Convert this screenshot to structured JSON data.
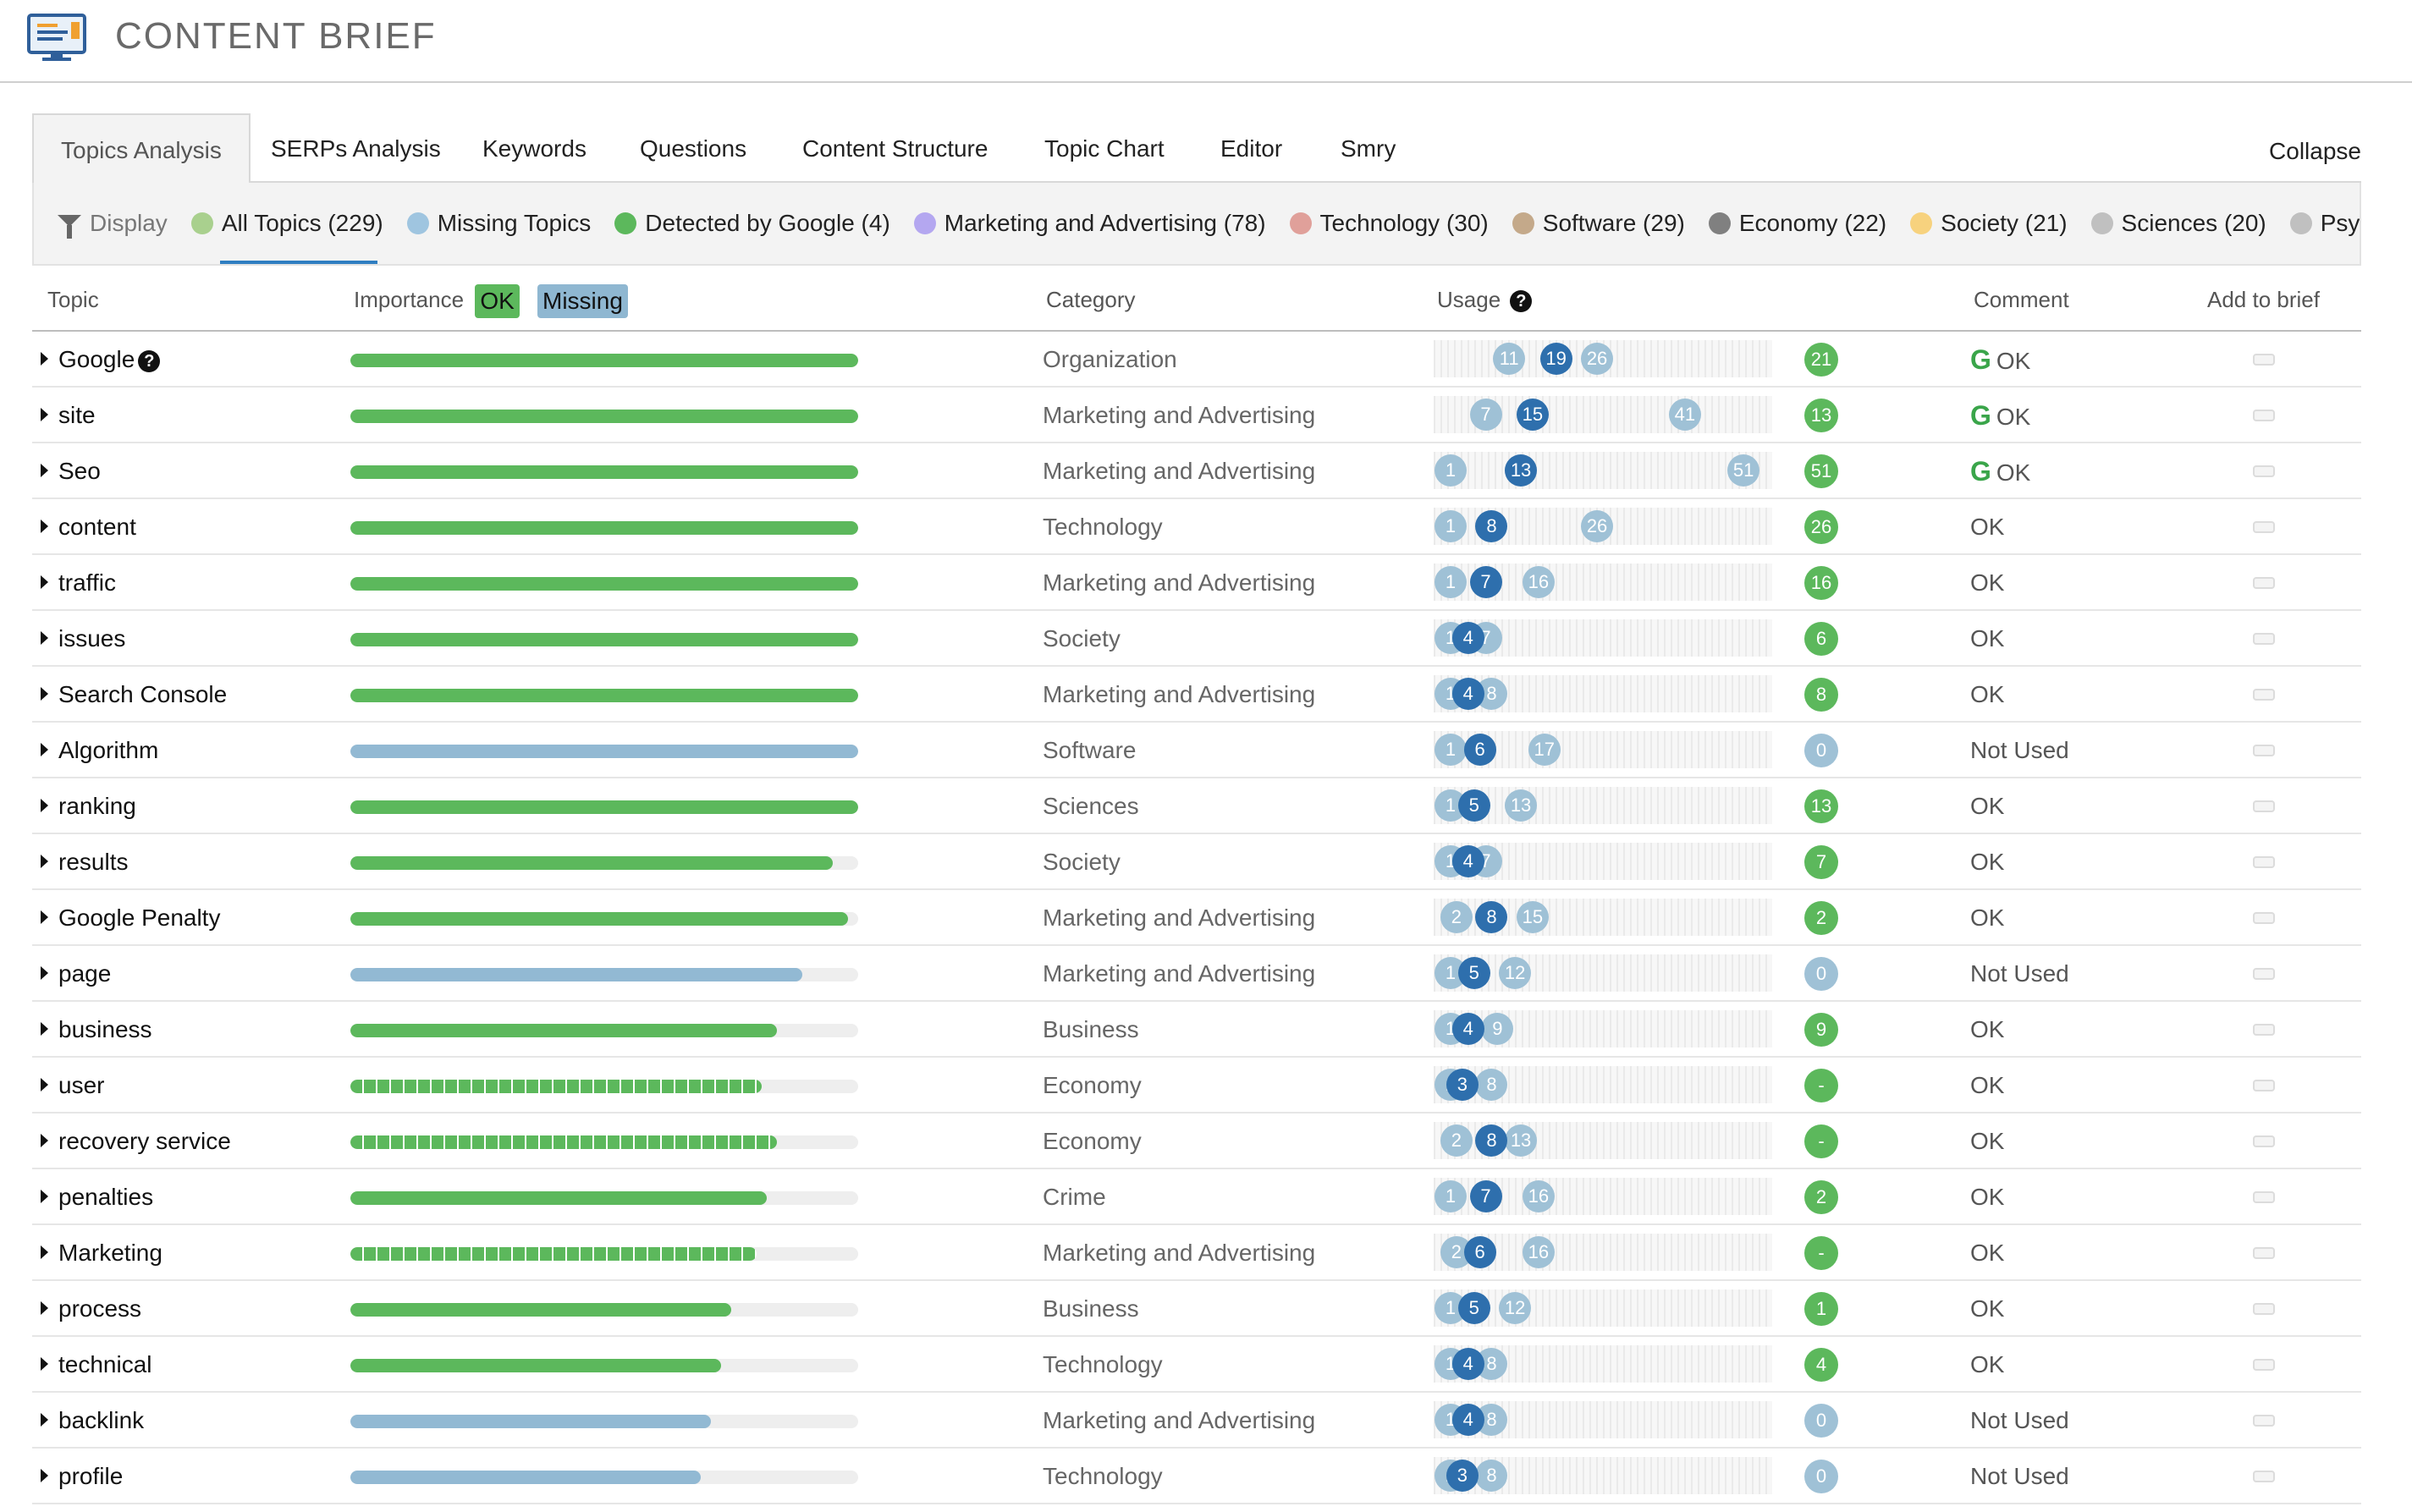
{
  "app": {
    "title": "CONTENT BRIEF",
    "logo_icon": "monitor-chart-icon"
  },
  "tabs": [
    {
      "label": "Topics Analysis",
      "active": true
    },
    {
      "label": "SERPs Analysis"
    },
    {
      "label": "Keywords"
    },
    {
      "label": "Questions"
    },
    {
      "label": "Content Structure"
    },
    {
      "label": "Topic Chart"
    },
    {
      "label": "Editor"
    },
    {
      "label": "Smry"
    }
  ],
  "collapse_label": "Collapse",
  "filters": {
    "display_label": "Display",
    "display_icon": "funnel-icon",
    "items": [
      {
        "label": "All Topics (229)",
        "color": "#a9d08e"
      },
      {
        "label": "Missing Topics",
        "color": "#9fc5e0"
      },
      {
        "label": "Detected by Google (4)",
        "color": "#5cb85c"
      },
      {
        "label": "Marketing and Advertising (78)",
        "color": "#b4a7f0"
      },
      {
        "label": "Technology (30)",
        "color": "#e0a09a"
      },
      {
        "label": "Software (29)",
        "color": "#c4a98a"
      },
      {
        "label": "Economy (22)",
        "color": "#808080"
      },
      {
        "label": "Society (21)",
        "color": "#f7d27e"
      },
      {
        "label": "Sciences (20)",
        "color": "#c0c0c0"
      },
      {
        "label": "Psy…",
        "color": "#c0c0c0"
      }
    ]
  },
  "table": {
    "headers": {
      "topic": "Topic",
      "importance": "Importance",
      "ok_badge": "OK",
      "missing_badge": "Missing",
      "category": "Category",
      "usage": "Usage",
      "comment": "Comment",
      "add": "Add to brief"
    },
    "rows": [
      {
        "topic": "Google",
        "help": true,
        "importance": 1.0,
        "style": "ok",
        "category": "Organization",
        "usage": [
          11,
          19,
          26
        ],
        "count": "21",
        "countType": "g",
        "google": true,
        "comment": "OK"
      },
      {
        "topic": "site",
        "importance": 1.0,
        "style": "ok",
        "category": "Marketing and Advertising",
        "usage": [
          7,
          15,
          41
        ],
        "count": "13",
        "countType": "g",
        "google": true,
        "comment": "OK"
      },
      {
        "topic": "Seo",
        "importance": 1.0,
        "style": "ok",
        "category": "Marketing and Advertising",
        "usage": [
          1,
          13,
          51
        ],
        "count": "51",
        "countType": "g",
        "google": true,
        "comment": "OK"
      },
      {
        "topic": "content",
        "importance": 1.0,
        "style": "ok",
        "category": "Technology",
        "usage": [
          1,
          8,
          26
        ],
        "count": "26",
        "countType": "g",
        "comment": "OK"
      },
      {
        "topic": "traffic",
        "importance": 1.0,
        "style": "ok",
        "category": "Marketing and Advertising",
        "usage": [
          1,
          7,
          16
        ],
        "count": "16",
        "countType": "g",
        "comment": "OK"
      },
      {
        "topic": "issues",
        "importance": 1.0,
        "style": "ok",
        "category": "Society",
        "usage": [
          1,
          4,
          7
        ],
        "count": "6",
        "countType": "g",
        "comment": "OK"
      },
      {
        "topic": "Search Console",
        "importance": 1.0,
        "style": "ok",
        "category": "Marketing and Advertising",
        "usage": [
          1,
          4,
          8
        ],
        "count": "8",
        "countType": "g",
        "comment": "OK"
      },
      {
        "topic": "Algorithm",
        "importance": 1.0,
        "style": "miss",
        "category": "Software",
        "usage": [
          1,
          6,
          17
        ],
        "count": "0",
        "countType": "b",
        "comment": "Not Used"
      },
      {
        "topic": "ranking",
        "importance": 1.0,
        "style": "ok",
        "category": "Sciences",
        "usage": [
          1,
          5,
          13
        ],
        "count": "13",
        "countType": "g",
        "comment": "OK"
      },
      {
        "topic": "results",
        "importance": 0.95,
        "style": "ok",
        "category": "Society",
        "usage": [
          1,
          4,
          7
        ],
        "count": "7",
        "countType": "g",
        "comment": "OK"
      },
      {
        "topic": "Google Penalty",
        "importance": 0.98,
        "style": "ok",
        "category": "Marketing and Advertising",
        "usage": [
          2,
          8,
          15
        ],
        "count": "2",
        "countType": "g",
        "comment": "OK"
      },
      {
        "topic": "page",
        "importance": 0.89,
        "style": "miss",
        "category": "Marketing and Advertising",
        "usage": [
          1,
          5,
          12
        ],
        "count": "0",
        "countType": "b",
        "comment": "Not Used"
      },
      {
        "topic": "business",
        "importance": 0.84,
        "style": "ok",
        "category": "Business",
        "usage": [
          1,
          4,
          9
        ],
        "count": "9",
        "countType": "g",
        "comment": "OK"
      },
      {
        "topic": "user",
        "importance": 0.81,
        "style": "seg",
        "category": "Economy",
        "usage": [
          1,
          3,
          8
        ],
        "count": "-",
        "countType": "g",
        "comment": "OK"
      },
      {
        "topic": "recovery service",
        "importance": 0.84,
        "style": "seg",
        "category": "Economy",
        "usage": [
          2,
          8,
          13
        ],
        "count": "-",
        "countType": "g",
        "comment": "OK"
      },
      {
        "topic": "penalties",
        "importance": 0.82,
        "style": "ok",
        "category": "Crime",
        "usage": [
          1,
          7,
          16
        ],
        "count": "2",
        "countType": "g",
        "comment": "OK"
      },
      {
        "topic": "Marketing",
        "importance": 0.8,
        "style": "seg",
        "category": "Marketing and Advertising",
        "usage": [
          2,
          6,
          16
        ],
        "count": "-",
        "countType": "g",
        "comment": "OK"
      },
      {
        "topic": "process",
        "importance": 0.75,
        "style": "ok",
        "category": "Business",
        "usage": [
          1,
          5,
          12
        ],
        "count": "1",
        "countType": "g",
        "comment": "OK"
      },
      {
        "topic": "technical",
        "importance": 0.73,
        "style": "ok",
        "category": "Technology",
        "usage": [
          1,
          4,
          8
        ],
        "count": "4",
        "countType": "g",
        "comment": "OK"
      },
      {
        "topic": "backlink",
        "importance": 0.71,
        "style": "miss",
        "category": "Marketing and Advertising",
        "usage": [
          1,
          4,
          8
        ],
        "count": "0",
        "countType": "b",
        "comment": "Not Used"
      },
      {
        "topic": "profile",
        "importance": 0.69,
        "style": "miss",
        "category": "Technology",
        "usage": [
          1,
          3,
          8
        ],
        "count": "0",
        "countType": "b",
        "comment": "Not Used"
      }
    ]
  }
}
